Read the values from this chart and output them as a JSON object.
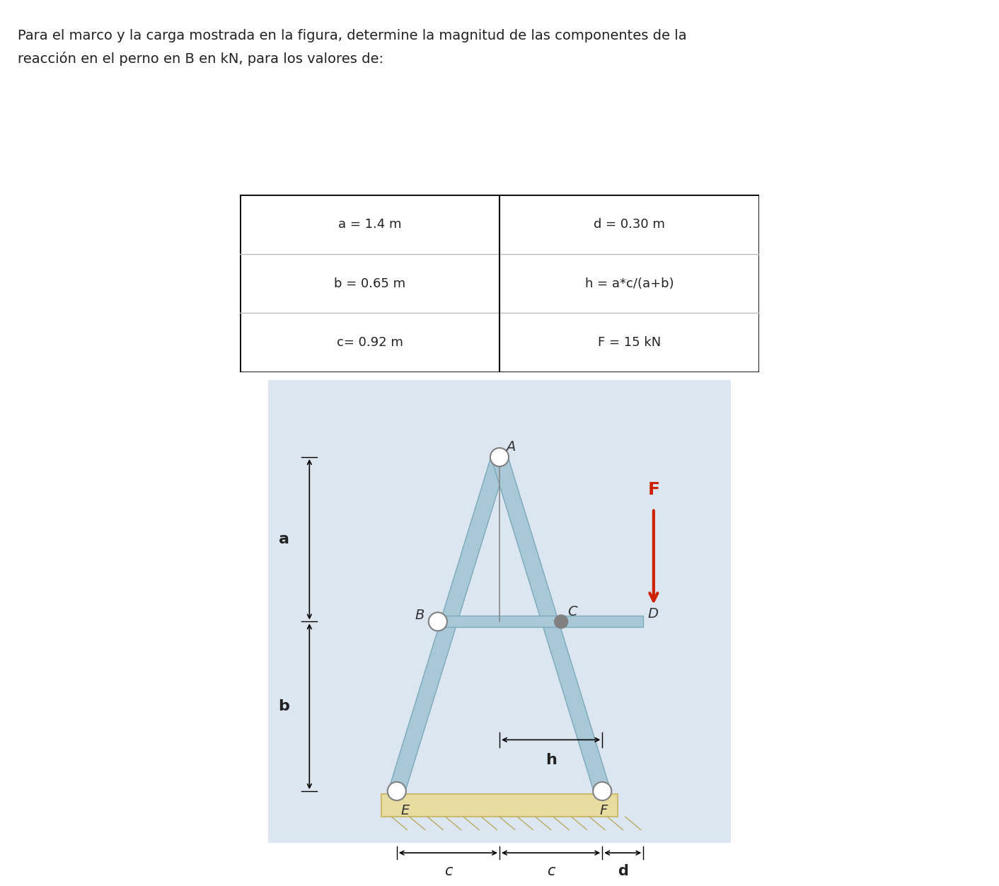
{
  "title_text": "Para el marco y la carga mostrada en la figura, determine la magnitud de las componentes de la\nreacción en el perno en B en kN, para los valores de:",
  "table": {
    "rows": [
      [
        "a = 1.4 m",
        "d = 0.30 m"
      ],
      [
        "b = 0.65 m",
        "h = a*c/(a+b)"
      ],
      [
        "c= 0.92 m",
        "F = 15 kN"
      ]
    ]
  },
  "bg_color": "#dce6f0",
  "member_color": "#a8c8d8",
  "member_edge_color": "#7aaabb",
  "ground_color": "#e8dca0",
  "pin_color": "#808080",
  "force_color": "#cc2200",
  "text_color": "#222222",
  "label_color": "#333333"
}
